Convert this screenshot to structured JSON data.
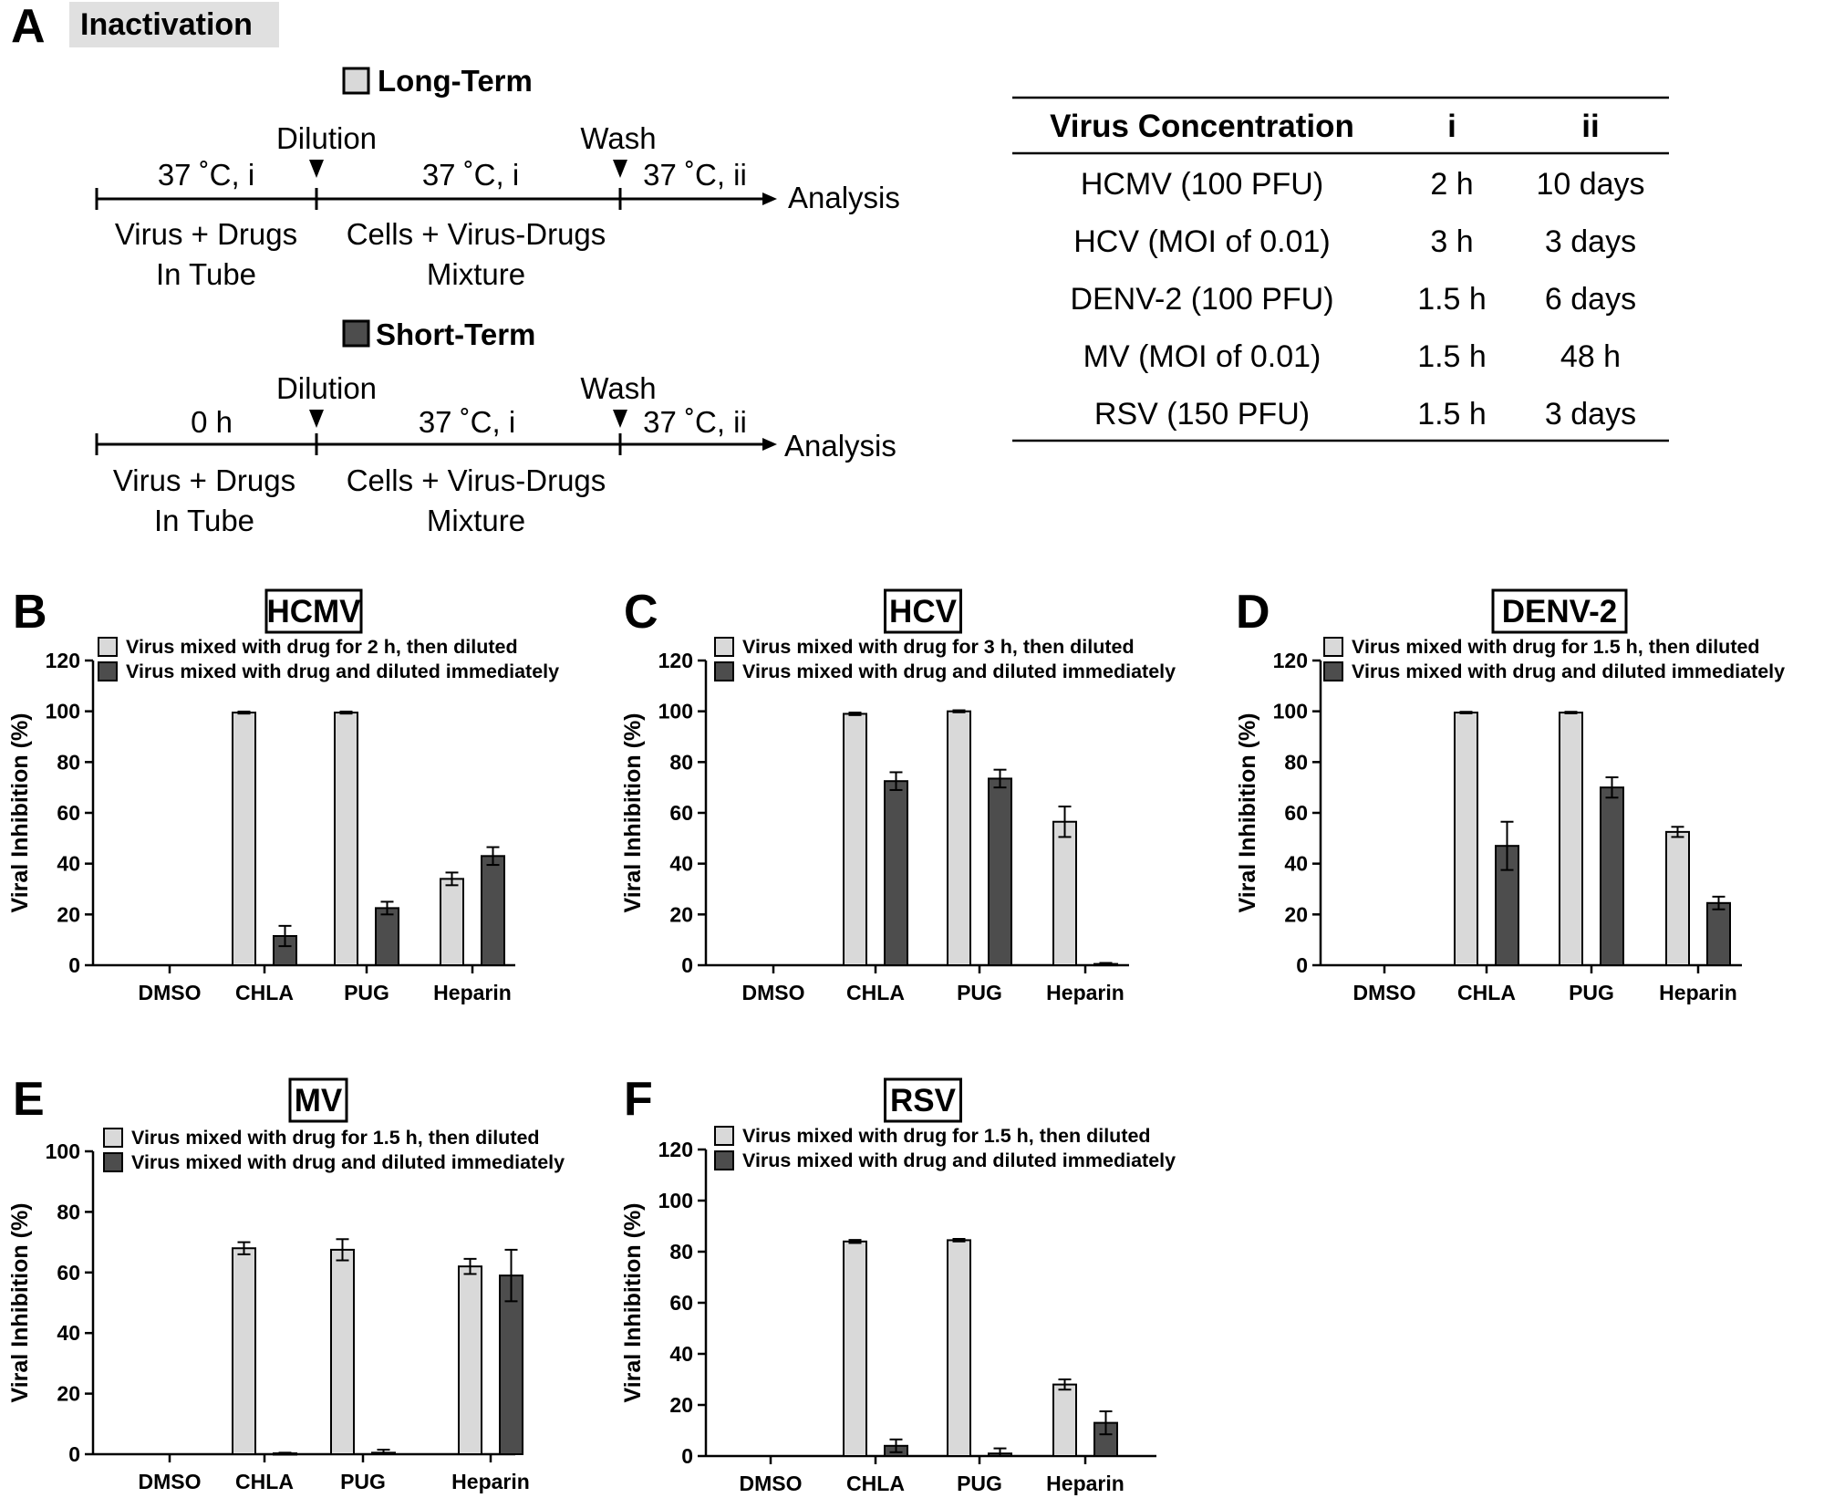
{
  "panel_a": {
    "letter": "A",
    "title": "Inactivation",
    "long_term": {
      "label": "Long-Term",
      "color": "#d9d9d9",
      "dilution": "Dilution",
      "wash": "Wash",
      "step1_time": "37 ˚C, i",
      "step2_time": "37 ˚C, i",
      "step3_time": "37 ˚C, ii",
      "analysis": "Analysis",
      "left_desc_line1": "Virus + Drugs",
      "left_desc_line2": "In Tube",
      "mid_desc_line1": "Cells + Virus-Drugs",
      "mid_desc_line2": "Mixture"
    },
    "short_term": {
      "label": "Short-Term",
      "color": "#4d4d4d",
      "dilution": "Dilution",
      "wash": "Wash",
      "step1_time": "0 h",
      "step2_time": "37 ˚C, i",
      "step3_time": "37 ˚C, ii",
      "analysis": "Analysis",
      "left_desc_line1": "Virus + Drugs",
      "left_desc_line2": "In Tube",
      "mid_desc_line1": "Cells + Virus-Drugs",
      "mid_desc_line2": "Mixture"
    },
    "table": {
      "headers": [
        "Virus Concentration",
        "i",
        "ii"
      ],
      "rows": [
        [
          "HCMV (100 PFU)",
          "2 h",
          "10 days"
        ],
        [
          "HCV (MOI of 0.01)",
          "3 h",
          "3 days"
        ],
        [
          "DENV-2 (100 PFU)",
          "1.5 h",
          "6 days"
        ],
        [
          "MV (MOI of 0.01)",
          "1.5 h",
          "48 h"
        ],
        [
          "RSV (150 PFU)",
          "1.5 h",
          "3 days"
        ]
      ]
    }
  },
  "colors": {
    "light_bar": "#d9d9d9",
    "dark_bar": "#4d4d4d",
    "title_bg": "#e0e0e0"
  },
  "chart_data": [
    {
      "panel": "B",
      "type": "bar",
      "title": "HCMV",
      "ylabel": "Viral Inhibition (%)",
      "xlabel": "",
      "ylim": [
        0,
        120
      ],
      "yticks": [
        0,
        20,
        40,
        60,
        80,
        100,
        120
      ],
      "categories": [
        "DMSO",
        "CHLA",
        "PUG",
        "Heparin"
      ],
      "series": [
        {
          "name": "Virus mixed with drug for 2 h, then diluted",
          "color": "#d9d9d9",
          "values": [
            0,
            99.5,
            99.5,
            34
          ],
          "errors": [
            0,
            0.4,
            0.4,
            2.5
          ]
        },
        {
          "name": "Virus mixed with drug and diluted immediately",
          "color": "#4d4d4d",
          "values": [
            0,
            11.5,
            22.5,
            43
          ],
          "errors": [
            0,
            4,
            2.5,
            3.5
          ]
        }
      ]
    },
    {
      "panel": "C",
      "type": "bar",
      "title": "HCV",
      "ylabel": "Viral Inhibition (%)",
      "xlabel": "",
      "ylim": [
        0,
        120
      ],
      "yticks": [
        0,
        20,
        40,
        60,
        80,
        100,
        120
      ],
      "categories": [
        "DMSO",
        "CHLA",
        "PUG",
        "Heparin"
      ],
      "series": [
        {
          "name": "Virus mixed with drug for 3 h, then diluted",
          "color": "#d9d9d9",
          "values": [
            0,
            99,
            100,
            56.5
          ],
          "errors": [
            0,
            0.5,
            0.4,
            6
          ]
        },
        {
          "name": "Virus mixed with drug and diluted immediately",
          "color": "#4d4d4d",
          "values": [
            0,
            72.5,
            73.5,
            0.5
          ],
          "errors": [
            0,
            3.5,
            3.5,
            0.4
          ]
        }
      ]
    },
    {
      "panel": "D",
      "type": "bar",
      "title": "DENV-2",
      "ylabel": "Viral Inhibition (%)",
      "xlabel": "",
      "ylim": [
        0,
        120
      ],
      "yticks": [
        0,
        20,
        40,
        60,
        80,
        100,
        120
      ],
      "categories": [
        "DMSO",
        "CHLA",
        "PUG",
        "Heparin"
      ],
      "series": [
        {
          "name": "Virus mixed with drug for 1.5 h, then diluted",
          "color": "#d9d9d9",
          "values": [
            0,
            99.5,
            99.5,
            52.5
          ],
          "errors": [
            0,
            0.3,
            0.3,
            2
          ]
        },
        {
          "name": "Virus mixed with drug and diluted immediately",
          "color": "#4d4d4d",
          "values": [
            0,
            47,
            70,
            24.5
          ],
          "errors": [
            0,
            9.5,
            4,
            2.5
          ]
        }
      ]
    },
    {
      "panel": "E",
      "type": "bar",
      "title": "MV",
      "ylabel": "Viral Inhibition (%)",
      "xlabel": "",
      "ylim": [
        0,
        100
      ],
      "yticks": [
        0,
        20,
        40,
        60,
        80,
        100
      ],
      "categories": [
        "DMSO",
        "CHLA",
        "PUG",
        "Heparin"
      ],
      "series": [
        {
          "name": "Virus mixed with drug for 1.5 h, then diluted",
          "color": "#d9d9d9",
          "values": [
            0,
            68,
            67.5,
            62
          ],
          "errors": [
            0,
            2,
            3.5,
            2.5
          ]
        },
        {
          "name": "Virus mixed with drug and diluted immediately",
          "color": "#4d4d4d",
          "values": [
            0,
            0.3,
            0.5,
            59
          ],
          "errors": [
            0,
            0.2,
            1,
            8.5
          ]
        }
      ]
    },
    {
      "panel": "F",
      "type": "bar",
      "title": "RSV",
      "ylabel": "Viral Inhibition (%)",
      "xlabel": "",
      "ylim": [
        0,
        120
      ],
      "yticks": [
        0,
        20,
        40,
        60,
        80,
        100,
        120
      ],
      "categories": [
        "DMSO",
        "CHLA",
        "PUG",
        "Heparin"
      ],
      "series": [
        {
          "name": "Virus mixed with drug for 1.5 h, then diluted",
          "color": "#d9d9d9",
          "values": [
            0,
            84,
            84.5,
            28
          ],
          "errors": [
            0,
            0.6,
            0.5,
            2
          ]
        },
        {
          "name": "Virus mixed with drug and diluted immediately",
          "color": "#4d4d4d",
          "values": [
            0,
            4,
            1,
            13
          ],
          "errors": [
            0,
            2.5,
            2,
            4.5
          ]
        }
      ]
    }
  ]
}
